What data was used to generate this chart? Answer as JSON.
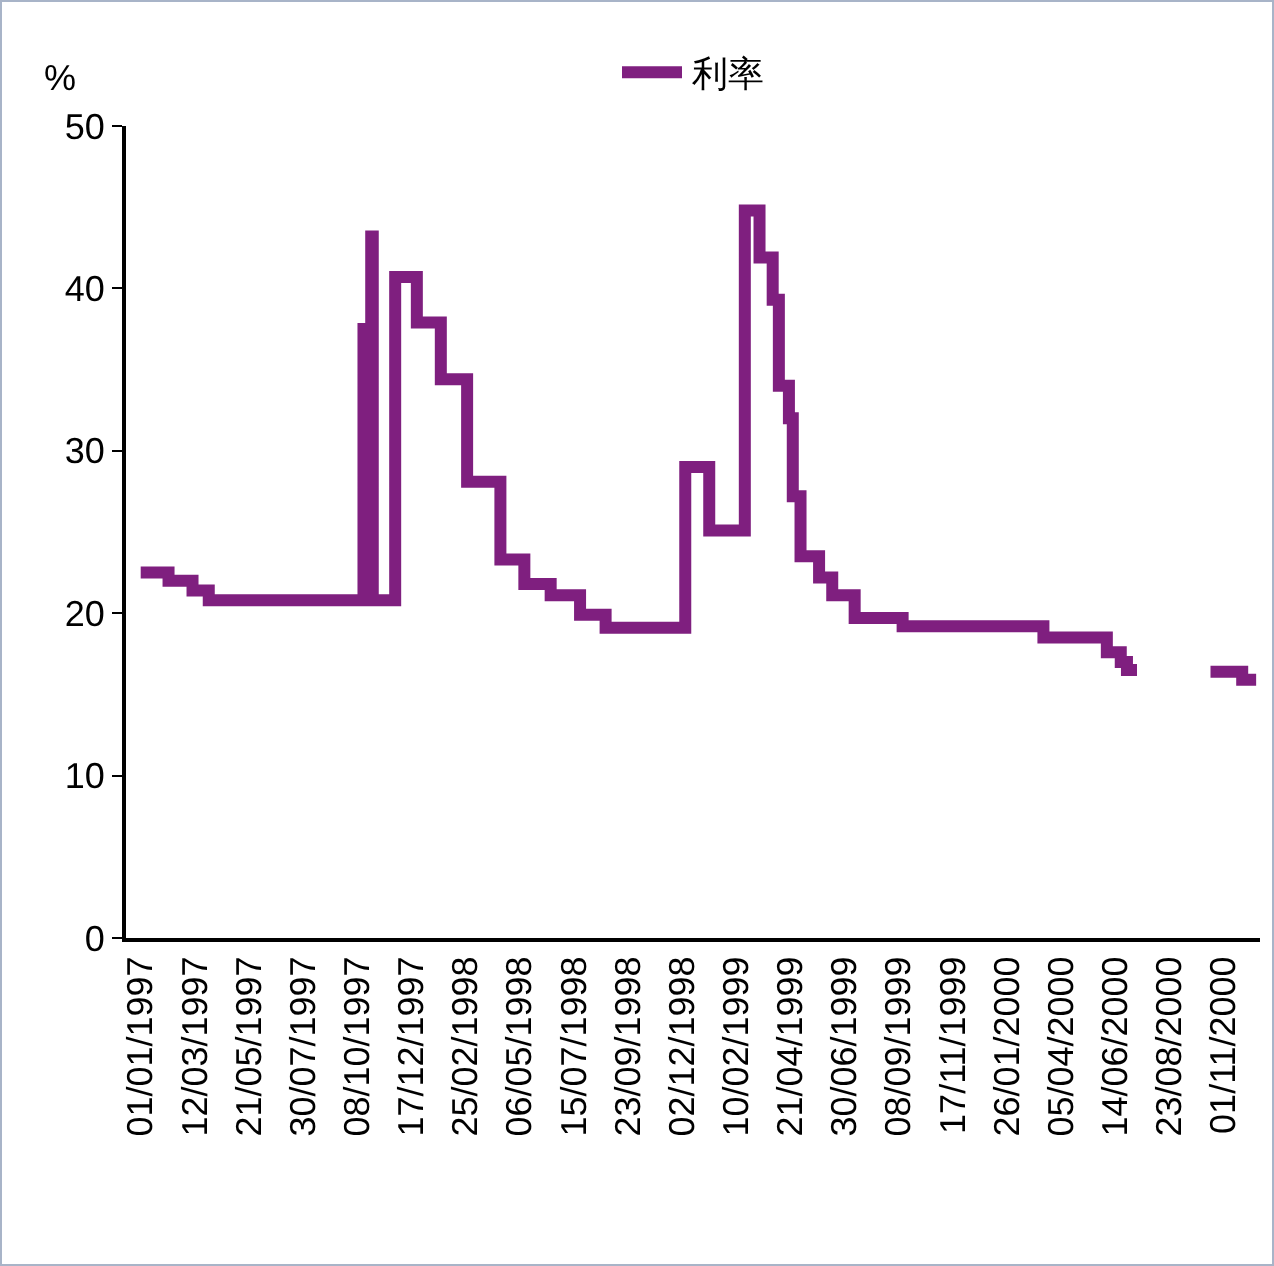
{
  "chart_data": {
    "type": "step",
    "ylabel": "%",
    "legend": "top",
    "grid": false,
    "x": [
      "1997-01-01",
      "1997-02-06",
      "1997-03-09",
      "1997-03-30",
      "1997-10-16",
      "1997-10-26",
      "1997-10-28",
      "1997-11-26",
      "1997-12-24",
      "1998-01-24",
      "1998-02-27",
      "1998-04-11",
      "1998-05-12",
      "1998-06-15",
      "1998-07-23",
      "1998-08-25",
      "1998-12-06",
      "1999-01-06",
      "1999-02-21",
      "1999-03-12",
      "1999-03-29",
      "1999-04-06",
      "1999-04-19",
      "1999-04-24",
      "1999-05-04",
      "1999-05-28",
      "1999-06-14",
      "1999-07-13",
      "1999-09-13",
      "2000-03-13",
      "2000-06-03",
      "2000-06-21",
      "2000-06-29",
      "2000-07-12",
      "2000-08-01",
      "2000-10-15",
      "2000-11-25",
      "2000-12-13"
    ],
    "series": [
      {
        "name": "利率",
        "color": "#7f1f7f",
        "values": [
          22.5,
          22.0,
          21.4,
          20.8,
          37.5,
          43.2,
          20.8,
          40.7,
          37.9,
          34.4,
          28.1,
          23.3,
          21.8,
          21.1,
          19.9,
          19.1,
          29.0,
          25.1,
          44.8,
          41.9,
          39.3,
          34.0,
          32.0,
          27.2,
          23.5,
          22.2,
          21.1,
          19.7,
          19.2,
          18.5,
          17.6,
          17.0,
          16.5,
          16.5,
          null,
          16.4,
          15.9,
          15.9
        ]
      }
    ],
    "xlim": [
      "1996-12-13",
      "2000-12-18"
    ],
    "xticks": [
      {
        "value": "1997-01-01",
        "label": "01/01/1997"
      },
      {
        "value": "1997-03-12",
        "label": "12/03/1997"
      },
      {
        "value": "1997-05-21",
        "label": "21/05/1997"
      },
      {
        "value": "1997-07-30",
        "label": "30/07/1997"
      },
      {
        "value": "1997-10-08",
        "label": "08/10/1997"
      },
      {
        "value": "1997-12-17",
        "label": "17/12/1997"
      },
      {
        "value": "1998-02-25",
        "label": "25/02/1998"
      },
      {
        "value": "1998-05-06",
        "label": "06/05/1998"
      },
      {
        "value": "1998-07-15",
        "label": "15/07/1998"
      },
      {
        "value": "1998-09-23",
        "label": "23/09/1998"
      },
      {
        "value": "1998-12-02",
        "label": "02/12/1998"
      },
      {
        "value": "1999-02-10",
        "label": "10/02/1999"
      },
      {
        "value": "1999-04-21",
        "label": "21/04/1999"
      },
      {
        "value": "1999-06-30",
        "label": "30/06/1999"
      },
      {
        "value": "1999-09-08",
        "label": "08/09/1999"
      },
      {
        "value": "1999-11-17",
        "label": "17/11/1999"
      },
      {
        "value": "2000-01-26",
        "label": "26/01/2000"
      },
      {
        "value": "2000-04-05",
        "label": "05/04/2000"
      },
      {
        "value": "2000-06-14",
        "label": "14/06/2000"
      },
      {
        "value": "2000-08-23",
        "label": "23/08/2000"
      },
      {
        "value": "2000-11-01",
        "label": "01/11/2000"
      }
    ],
    "ylim": [
      0,
      50
    ],
    "yticks": [
      0,
      10,
      20,
      30,
      40,
      50
    ],
    "marker": "none",
    "line_style": "solid"
  }
}
